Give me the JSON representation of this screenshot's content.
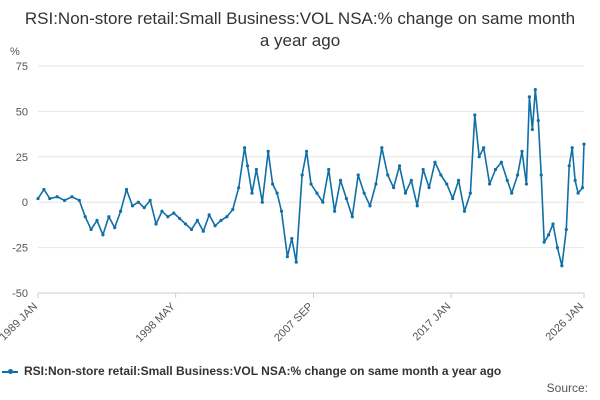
{
  "chart_data": {
    "type": "line",
    "title": "RSI:Non-store retail:Small Business:VOL NSA:% change on same month a year ago",
    "ylabel": "%",
    "xlabel": "",
    "ylim": [
      -50,
      75
    ],
    "yticks": [
      -50,
      -25,
      0,
      25,
      50,
      75
    ],
    "grid": true,
    "legend_position": "bottom-left",
    "xlim": [
      1989.0,
      2026.0
    ],
    "x_tick_labels": [
      {
        "label": "1989 JAN",
        "year": 1989.0
      },
      {
        "label": "1998 MAY",
        "year": 1998.33
      },
      {
        "label": "2007 SEP",
        "year": 2007.67
      },
      {
        "label": "2017 JAN",
        "year": 2017.0
      },
      {
        "label": "2026 JAN",
        "year": 2026.0
      }
    ],
    "series": [
      {
        "name": "RSI:Non-store retail:Small Business:VOL NSA:% change on same month a year ago",
        "color": "#0f6fa6",
        "points": [
          [
            1989.0,
            2
          ],
          [
            1989.4,
            7
          ],
          [
            1989.8,
            2
          ],
          [
            1990.3,
            3
          ],
          [
            1990.8,
            1
          ],
          [
            1991.3,
            3
          ],
          [
            1991.8,
            1
          ],
          [
            1992.2,
            -8
          ],
          [
            1992.6,
            -15
          ],
          [
            1993.0,
            -10
          ],
          [
            1993.4,
            -18
          ],
          [
            1993.8,
            -8
          ],
          [
            1994.2,
            -14
          ],
          [
            1994.6,
            -5
          ],
          [
            1995.0,
            7
          ],
          [
            1995.4,
            -2
          ],
          [
            1995.8,
            0
          ],
          [
            1996.2,
            -3
          ],
          [
            1996.6,
            1
          ],
          [
            1997.0,
            -12
          ],
          [
            1997.4,
            -5
          ],
          [
            1997.8,
            -8
          ],
          [
            1998.2,
            -6
          ],
          [
            1998.6,
            -9
          ],
          [
            1999.0,
            -12
          ],
          [
            1999.4,
            -15
          ],
          [
            1999.8,
            -10
          ],
          [
            2000.2,
            -16
          ],
          [
            2000.6,
            -7
          ],
          [
            2001.0,
            -13
          ],
          [
            2001.4,
            -10
          ],
          [
            2001.8,
            -8
          ],
          [
            2002.2,
            -4
          ],
          [
            2002.6,
            8
          ],
          [
            2003.0,
            30
          ],
          [
            2003.2,
            20
          ],
          [
            2003.5,
            5
          ],
          [
            2003.8,
            18
          ],
          [
            2004.2,
            0
          ],
          [
            2004.6,
            28
          ],
          [
            2004.9,
            10
          ],
          [
            2005.2,
            5
          ],
          [
            2005.5,
            -5
          ],
          [
            2005.9,
            -30
          ],
          [
            2006.2,
            -20
          ],
          [
            2006.5,
            -33
          ],
          [
            2006.9,
            15
          ],
          [
            2007.2,
            28
          ],
          [
            2007.5,
            10
          ],
          [
            2007.9,
            5
          ],
          [
            2008.3,
            0
          ],
          [
            2008.7,
            18
          ],
          [
            2009.1,
            -5
          ],
          [
            2009.5,
            12
          ],
          [
            2009.9,
            2
          ],
          [
            2010.3,
            -8
          ],
          [
            2010.7,
            15
          ],
          [
            2011.1,
            5
          ],
          [
            2011.5,
            -2
          ],
          [
            2011.9,
            10
          ],
          [
            2012.3,
            30
          ],
          [
            2012.7,
            15
          ],
          [
            2013.1,
            8
          ],
          [
            2013.5,
            20
          ],
          [
            2013.9,
            5
          ],
          [
            2014.3,
            12
          ],
          [
            2014.7,
            -2
          ],
          [
            2015.1,
            18
          ],
          [
            2015.5,
            8
          ],
          [
            2015.9,
            22
          ],
          [
            2016.3,
            15
          ],
          [
            2016.7,
            10
          ],
          [
            2017.1,
            2
          ],
          [
            2017.5,
            12
          ],
          [
            2017.9,
            -5
          ],
          [
            2018.3,
            5
          ],
          [
            2018.6,
            48
          ],
          [
            2018.9,
            25
          ],
          [
            2019.2,
            30
          ],
          [
            2019.6,
            10
          ],
          [
            2020.0,
            18
          ],
          [
            2020.4,
            22
          ],
          [
            2020.8,
            12
          ],
          [
            2021.1,
            5
          ],
          [
            2021.5,
            15
          ],
          [
            2021.8,
            28
          ],
          [
            2022.1,
            10
          ],
          [
            2022.3,
            58
          ],
          [
            2022.5,
            40
          ],
          [
            2022.7,
            62
          ],
          [
            2022.9,
            45
          ],
          [
            2023.1,
            15
          ],
          [
            2023.3,
            -22
          ],
          [
            2023.6,
            -18
          ],
          [
            2023.9,
            -12
          ],
          [
            2024.2,
            -25
          ],
          [
            2024.5,
            -35
          ],
          [
            2024.8,
            -15
          ],
          [
            2025.0,
            20
          ],
          [
            2025.2,
            30
          ],
          [
            2025.4,
            12
          ],
          [
            2025.6,
            5
          ],
          [
            2025.9,
            8
          ],
          [
            2026.0,
            32
          ]
        ]
      }
    ]
  },
  "source_label": "Source:"
}
